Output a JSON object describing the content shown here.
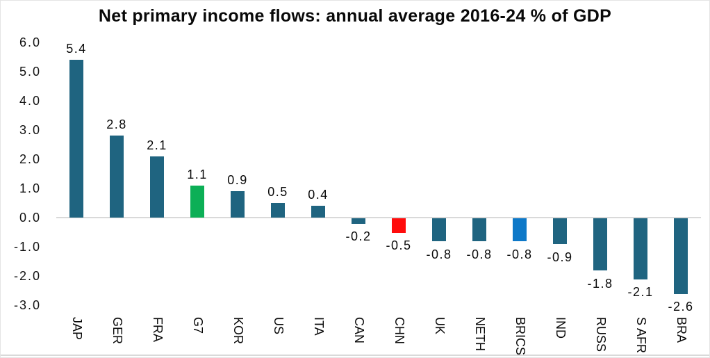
{
  "window": {
    "background": "#ffffff",
    "border_color": "#e4e4e4"
  },
  "chart_data": {
    "type": "bar",
    "title": "Net primary income flows: annual average 2016-24 % of GDP",
    "categories": [
      "JAP",
      "GER",
      "FRA",
      "G7",
      "KOR",
      "US",
      "ITA",
      "CAN",
      "CHN",
      "UK",
      "NETH",
      "BRICS",
      "IND",
      "RUSS",
      "S AFR",
      "BRA"
    ],
    "values": [
      5.4,
      2.8,
      2.1,
      1.1,
      0.9,
      0.5,
      0.4,
      -0.2,
      -0.5,
      -0.8,
      -0.8,
      -0.8,
      -0.9,
      -1.8,
      -2.1,
      -2.6
    ],
    "data_labels": [
      "5.4",
      "2.8",
      "2.1",
      "1.1",
      "0.9",
      "0.5",
      "0.4",
      "-0.2",
      "-0.5",
      "-0.8",
      "-0.8",
      "-0.8",
      "-0.9",
      "-1.8",
      "-2.1",
      "-2.6"
    ],
    "bar_colors": [
      "#1f6480",
      "#1f6480",
      "#1f6480",
      "#0caf56",
      "#1f6480",
      "#1f6480",
      "#1f6480",
      "#1f6480",
      "#ff0c0c",
      "#1f6480",
      "#1f6480",
      "#0d78c8",
      "#1f6480",
      "#1f6480",
      "#1f6480",
      "#1f6480"
    ],
    "color_legend": {
      "default_teal": "#1f6480",
      "g7_green": "#0caf56",
      "chn_red": "#ff0c0c",
      "brics_blue": "#0d78c8"
    },
    "xlabel": "",
    "ylabel": "",
    "ylim": [
      -3.0,
      6.0
    ],
    "y_axis": {
      "ticks": [
        "6.0",
        "5.0",
        "4.0",
        "3.0",
        "2.0",
        "1.0",
        "0.0",
        "-1.0",
        "-2.0",
        "-3.0"
      ],
      "min": -3.0,
      "max": 6.0,
      "step": 1.0
    },
    "x_axis": {
      "label_rotation_degrees": 90
    },
    "grid": "zero-line-only",
    "legend": "none",
    "axis_line_color": "#d9d9d9",
    "text_color": "#0a0a0a"
  }
}
